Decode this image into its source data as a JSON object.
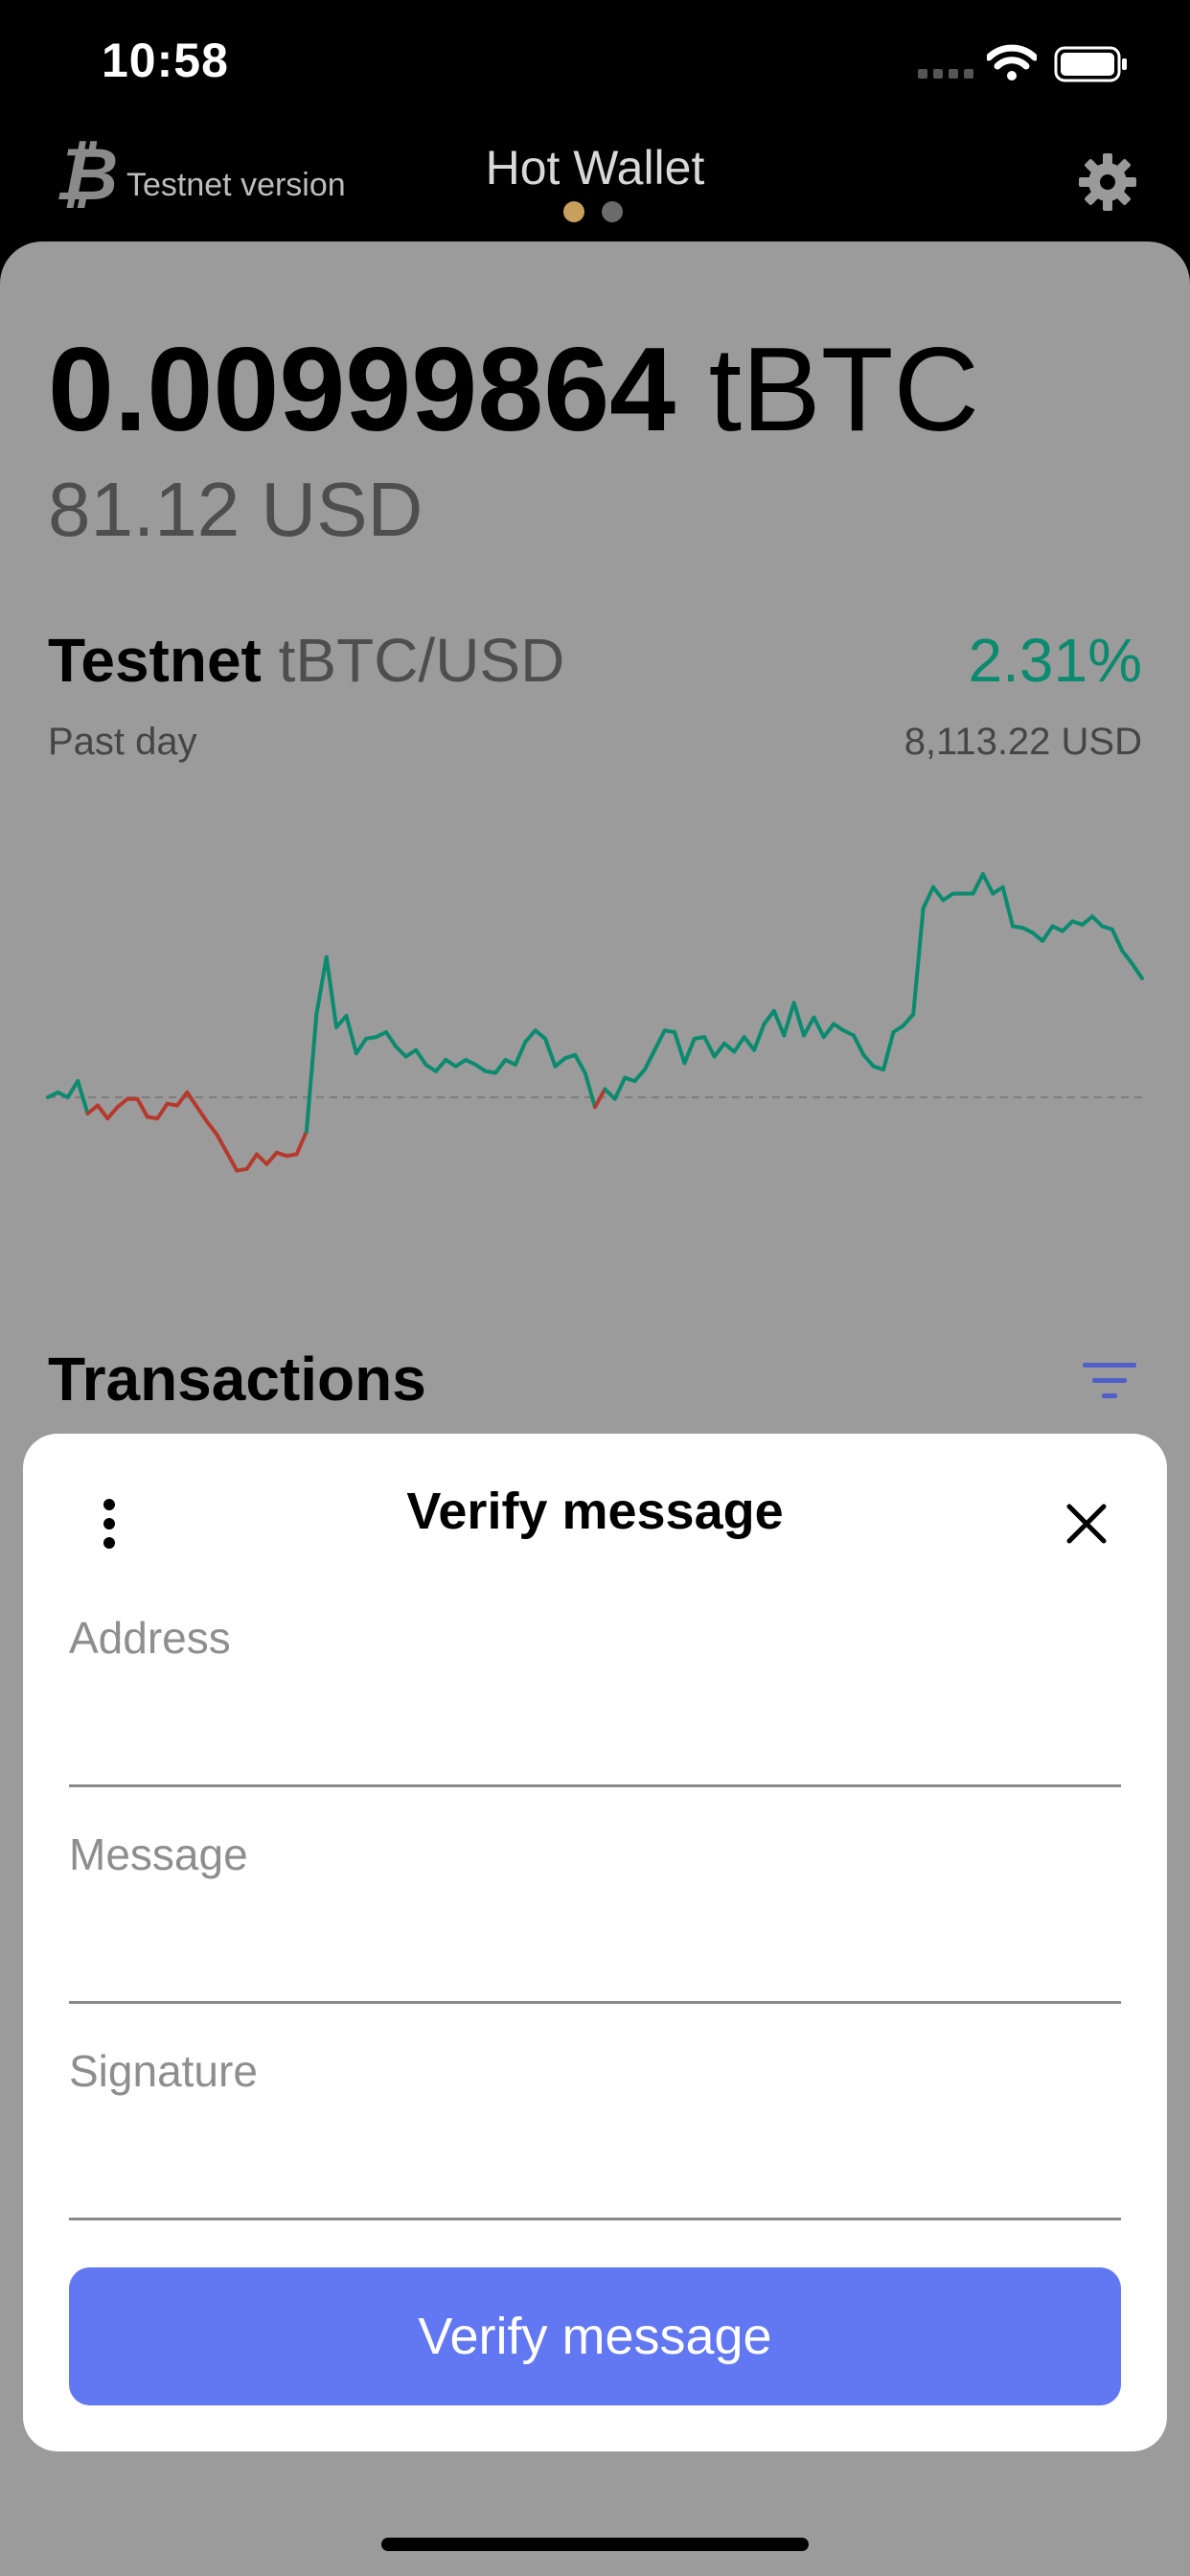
{
  "status_bar": {
    "time": "10:58"
  },
  "header": {
    "network_label": "Testnet version",
    "title": "Hot Wallet",
    "page_count": 2,
    "active_page": 1
  },
  "balance": {
    "amount": "0.00999864",
    "unit": "tBTC",
    "fiat": "81.12 USD"
  },
  "market": {
    "network": "Testnet",
    "pair": "tBTC/USD",
    "change": "2.31%",
    "period": "Past day",
    "price": "8,113.22 USD"
  },
  "colors": {
    "up": "#0a8a6f",
    "down": "#b53a2d",
    "accent": "#6277f2",
    "card": "#9b9b9b"
  },
  "chart_data": {
    "type": "line",
    "title": "",
    "xlabel": "",
    "ylabel": "",
    "baseline_dashed": true,
    "values": [
      0.0,
      0.3,
      0.0,
      1.0,
      -1.0,
      -0.5,
      -1.3,
      -0.6,
      -0.1,
      -0.1,
      -1.2,
      -1.3,
      -0.4,
      -0.5,
      0.3,
      -0.6,
      -1.5,
      -2.3,
      -3.4,
      -4.5,
      -4.4,
      -3.5,
      -4.1,
      -3.4,
      -3.6,
      -3.5,
      -2.1,
      5.1,
      8.6,
      4.3,
      5.0,
      2.7,
      3.6,
      3.7,
      4.0,
      3.1,
      2.5,
      2.9,
      2.0,
      1.6,
      2.3,
      1.9,
      2.3,
      2.0,
      1.6,
      1.5,
      2.3,
      2.0,
      3.4,
      4.1,
      3.6,
      1.9,
      2.4,
      2.6,
      1.5,
      -0.6,
      0.5,
      -0.1,
      1.2,
      1.0,
      1.7,
      2.9,
      4.1,
      4.0,
      2.1,
      3.6,
      3.7,
      2.5,
      3.3,
      2.8,
      3.7,
      2.9,
      4.5,
      5.3,
      3.8,
      5.8,
      3.8,
      4.9,
      3.7,
      4.5,
      4.1,
      3.8,
      2.6,
      1.9,
      1.7,
      4.0,
      4.4,
      5.1,
      11.6,
      12.9,
      12.1,
      12.5,
      12.5,
      12.5,
      13.7,
      12.5,
      12.9,
      10.5,
      10.4,
      10.1,
      9.6,
      10.5,
      10.2,
      10.8,
      10.6,
      11.1,
      10.5,
      10.3,
      9.0,
      8.2,
      7.3
    ],
    "baseline": 0
  },
  "transactions": {
    "title": "Transactions"
  },
  "sheet": {
    "title": "Verify message",
    "fields": [
      {
        "label": "Address",
        "value": ""
      },
      {
        "label": "Message",
        "value": ""
      },
      {
        "label": "Signature",
        "value": ""
      }
    ],
    "button_label": "Verify message"
  }
}
